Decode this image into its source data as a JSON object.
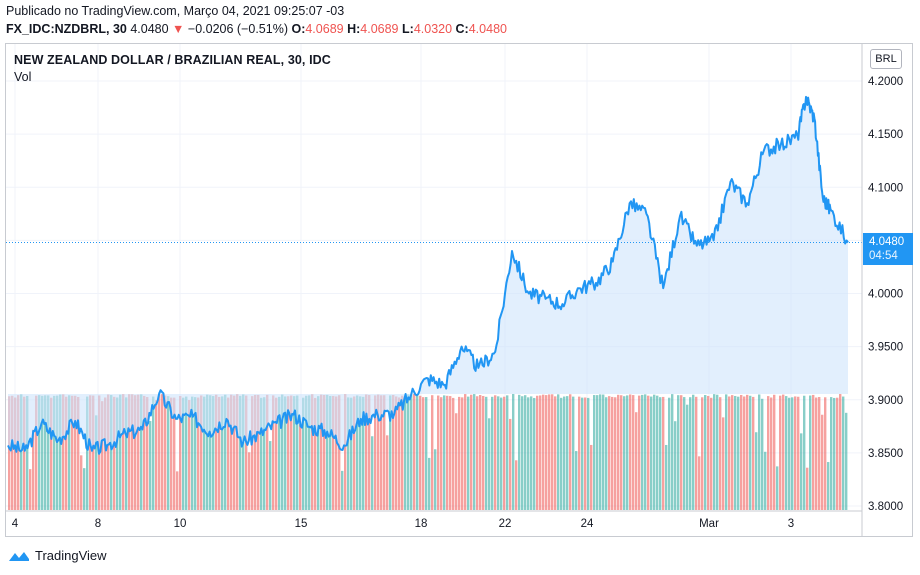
{
  "header": {
    "published": "Publicado no TradingView.com, Março 04, 2021 09:25:07 -03",
    "symbol_prefix": "FX_IDC:NZDBRL, 30",
    "last": "4.0480",
    "arrow": "▼",
    "change": "−0.0206 (−0.51%)",
    "o_label": "O:",
    "o_value": "4.0689",
    "h_label": "H:",
    "h_value": "4.0689",
    "l_label": "L:",
    "l_value": "4.0320",
    "c_label": "C:",
    "c_value": "4.0480"
  },
  "legend": {
    "title": "NEW ZEALAND DOLLAR / BRAZILIAN REAL, 30, IDC",
    "vol": "Vol"
  },
  "currency_button": "BRL",
  "price_tag": {
    "price": "4.0480",
    "countdown": "04:54"
  },
  "brand": "TradingView",
  "colors": {
    "line": "#2196f3",
    "fill_top": "#cfe4fb",
    "vol_up": "#26a69a",
    "vol_down": "#ef5350",
    "grid": "#f0f3fa"
  },
  "chart_data": {
    "type": "area",
    "title": "NEW ZEALAND DOLLAR / BRAZILIAN REAL, 30, IDC",
    "xlabel": "",
    "ylabel": "BRL",
    "ylim": [
      3.8,
      4.2
    ],
    "y_ticks": [
      "3.8000",
      "3.8500",
      "3.9000",
      "3.9500",
      "4.0000",
      "4.0500",
      "4.1000",
      "4.1500",
      "4.2000"
    ],
    "x_ticks": [
      "4",
      "8",
      "10",
      "15",
      "18",
      "22",
      "24",
      "Mar",
      "3"
    ],
    "last_price": 4.048,
    "series": [
      {
        "name": "NZDBRL close",
        "x": [
          0,
          0.02,
          0.04,
          0.06,
          0.08,
          0.1,
          0.12,
          0.14,
          0.16,
          0.18,
          0.2,
          0.22,
          0.24,
          0.26,
          0.28,
          0.3,
          0.32,
          0.34,
          0.36,
          0.38,
          0.4,
          0.42,
          0.44,
          0.46,
          0.48,
          0.5,
          0.52,
          0.54,
          0.56,
          0.58,
          0.6,
          0.62,
          0.64,
          0.66,
          0.68,
          0.7,
          0.72,
          0.74,
          0.76,
          0.78,
          0.8,
          0.82,
          0.84,
          0.86,
          0.88,
          0.9,
          0.92,
          0.94,
          0.95,
          0.96,
          0.97,
          0.98,
          1.0
        ],
        "values": [
          3.857,
          3.852,
          3.878,
          3.862,
          3.88,
          3.852,
          3.858,
          3.868,
          3.872,
          3.906,
          3.882,
          3.884,
          3.87,
          3.882,
          3.86,
          3.868,
          3.878,
          3.886,
          3.874,
          3.87,
          3.857,
          3.882,
          3.886,
          3.887,
          3.905,
          3.92,
          3.914,
          3.95,
          3.93,
          3.945,
          4.04,
          4.0,
          3.995,
          3.99,
          4.005,
          4.01,
          4.03,
          4.085,
          4.075,
          4.005,
          4.073,
          4.045,
          4.05,
          4.105,
          4.085,
          4.135,
          4.14,
          4.148,
          4.185,
          4.165,
          4.09,
          4.078,
          4.048
        ]
      }
    ]
  }
}
